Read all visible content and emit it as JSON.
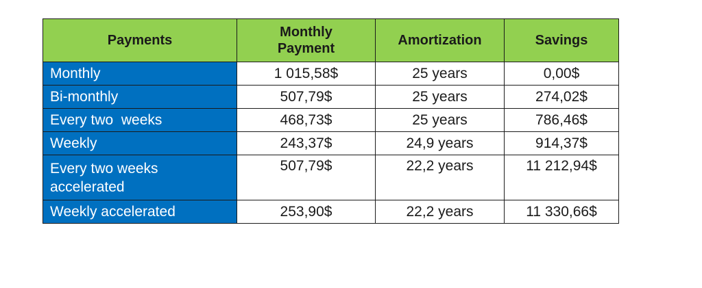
{
  "colors": {
    "header_bg": "#92d050",
    "label_bg": "#0070c0",
    "cell_bg": "#ffffff",
    "border": "#1a1a1a"
  },
  "table": {
    "headers": [
      "Payments",
      "Monthly Payment",
      "Amortization",
      "Savings"
    ],
    "rows": [
      {
        "payment": "Monthly",
        "monthly_payment": "1 015,58$",
        "amortization": "25 years",
        "savings": "0,00$"
      },
      {
        "payment": "Bi-monthly",
        "monthly_payment": "507,79$",
        "amortization": "25 years",
        "savings": "274,02$"
      },
      {
        "payment": "Every two  weeks",
        "monthly_payment": "468,73$",
        "amortization": "25 years",
        "savings": "786,46$"
      },
      {
        "payment": "Weekly",
        "monthly_payment": "243,37$",
        "amortization": "24,9 years",
        "savings": "914,37$"
      },
      {
        "payment": "Every two  weeks accelerated",
        "monthly_payment": "507,79$",
        "amortization": "22,2 years",
        "savings": "11 212,94$"
      },
      {
        "payment": "Weekly accelerated",
        "monthly_payment": "253,90$",
        "amortization": "22,2 years",
        "savings": "11 330,66$"
      }
    ]
  }
}
